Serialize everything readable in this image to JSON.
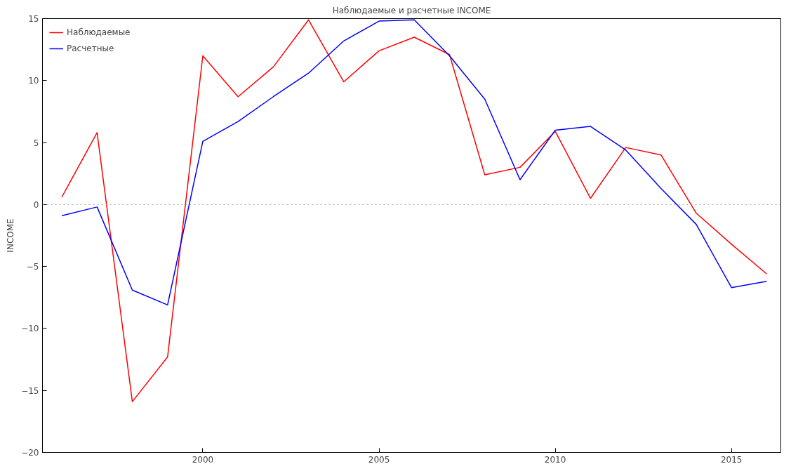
{
  "chart_data": {
    "type": "line",
    "title": "Наблюдаемые и расчетные INCOME",
    "ylabel": "INCOME",
    "x": [
      1996,
      1997,
      1998,
      1999,
      2000,
      2001,
      2002,
      2003,
      2004,
      2005,
      2006,
      2007,
      2008,
      2009,
      2010,
      2011,
      2012,
      2013,
      2014,
      2015,
      2016
    ],
    "series": [
      {
        "name": "Наблюдаемые",
        "color": "#ff0000",
        "values": [
          0.6,
          5.8,
          -15.9,
          -12.3,
          12.0,
          8.7,
          11.1,
          14.9,
          9.9,
          12.4,
          13.5,
          12.1,
          2.4,
          3.0,
          5.9,
          0.5,
          4.6,
          4.0,
          -0.7,
          -3.2,
          -5.6
        ]
      },
      {
        "name": "Расчетные",
        "color": "#0000ff",
        "values": [
          -0.9,
          -0.2,
          -6.9,
          -8.1,
          5.1,
          6.7,
          8.7,
          10.6,
          13.2,
          14.8,
          14.9,
          12.0,
          8.5,
          2.0,
          6.0,
          6.3,
          4.4,
          1.3,
          -1.6,
          -6.7,
          -6.2
        ]
      }
    ],
    "xlim": [
      1995.45,
      2016.4
    ],
    "xticks": [
      2000,
      2005,
      2010,
      2015
    ],
    "ylim": [
      -20,
      15
    ],
    "yticks": [
      -20,
      -15,
      -10,
      -5,
      0,
      5,
      10,
      15
    ],
    "ref_lines": [
      {
        "axis": "y",
        "value": 0,
        "color": "#a0a0a0",
        "line_style": "dotted"
      }
    ],
    "grid": false,
    "legend": "top left",
    "marker": "none",
    "line_style": "solid"
  }
}
